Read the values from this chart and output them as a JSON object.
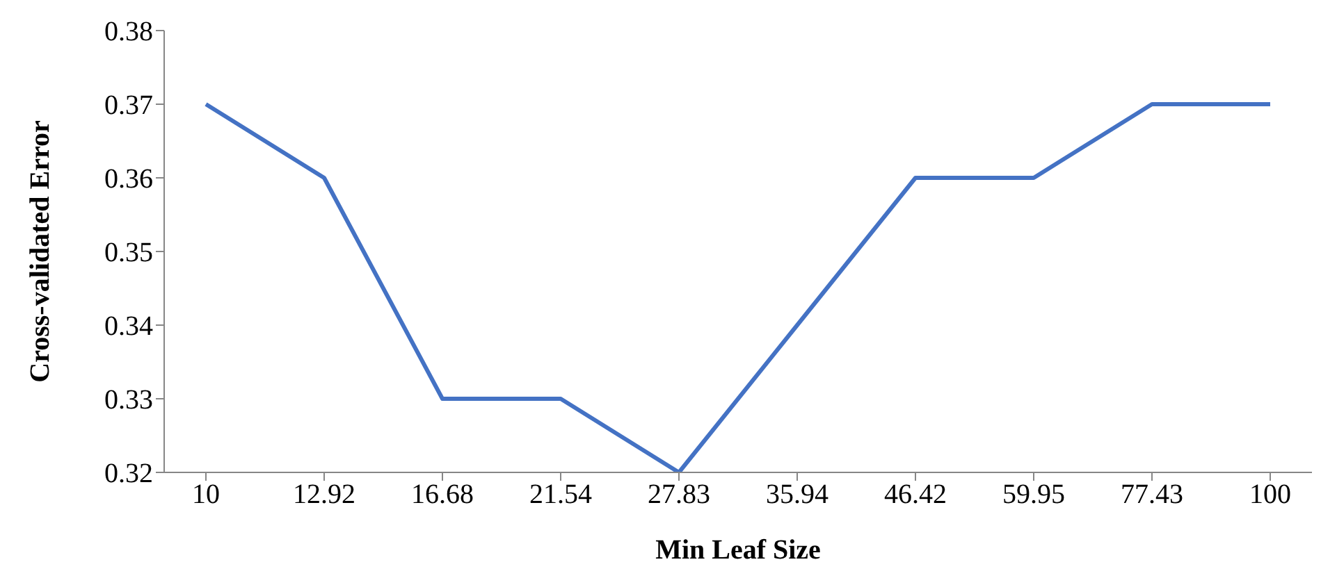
{
  "chart_data": {
    "type": "line",
    "xlabel": "Min Leaf Size",
    "ylabel": "Cross-validated Error",
    "categories": [
      "10",
      "12.92",
      "16.68",
      "21.54",
      "27.83",
      "35.94",
      "46.42",
      "59.95",
      "77.43",
      "100"
    ],
    "series": [
      {
        "color": "#4472c4",
        "values": [
          0.37,
          0.36,
          0.33,
          0.33,
          0.32,
          0.34,
          0.36,
          0.36,
          0.37,
          0.37
        ]
      }
    ],
    "ylim": [
      0.32,
      0.38
    ],
    "yticks": [
      0.32,
      0.33,
      0.34,
      0.35,
      0.36,
      0.37,
      0.38
    ],
    "grid": false,
    "legend": false,
    "marker": "none",
    "line_style": "solid"
  }
}
